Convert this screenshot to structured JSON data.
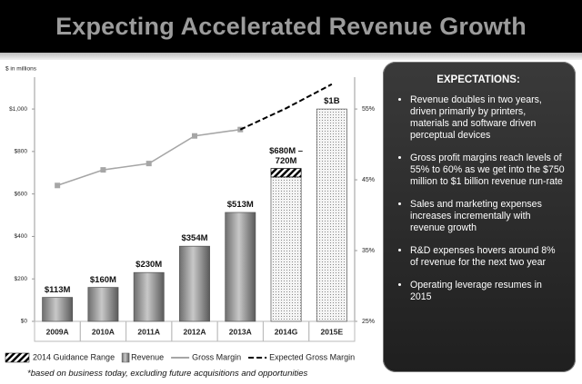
{
  "header": {
    "title": "Expecting Accelerated Revenue Growth"
  },
  "chart_data": {
    "type": "bar",
    "y_axis_label": "$ in millions",
    "categories": [
      "2009A",
      "2010A",
      "2011A",
      "2012A",
      "2013A",
      "2014G",
      "2015E"
    ],
    "series": [
      {
        "name": "Revenue",
        "color": "#9a9a9a",
        "values": [
          113,
          160,
          230,
          354,
          513,
          680,
          1000
        ],
        "value_labels": [
          "$113M",
          "$160M",
          "$230M",
          "$354M",
          "$513M",
          "$680M – 720M",
          "$1B"
        ]
      },
      {
        "name": "2014 Guidance Range",
        "color": "#000000",
        "stacked": true,
        "values": [
          null,
          null,
          null,
          null,
          null,
          40,
          null
        ]
      },
      {
        "name": "Gross Margin",
        "type": "line",
        "axis": "y2",
        "color": "#a6a6a6",
        "values": [
          44.2,
          46.4,
          47.3,
          51.2,
          52.1,
          null,
          null
        ]
      },
      {
        "name": "Expected Gross Margin",
        "type": "line",
        "axis": "y2",
        "color": "#000000",
        "dashed": true,
        "values": [
          null,
          null,
          null,
          null,
          52.1,
          55.1,
          58.5
        ]
      }
    ],
    "ylim": [
      0,
      1150
    ],
    "yticks": [
      {
        "value": 0,
        "label": "$0"
      },
      {
        "value": 200,
        "label": "$200"
      },
      {
        "value": 400,
        "label": "$400"
      },
      {
        "value": 600,
        "label": "$600"
      },
      {
        "value": 800,
        "label": "$800"
      },
      {
        "value": 1000,
        "label": "$1,000"
      }
    ],
    "y2lim": [
      25,
      59.5
    ],
    "y2ticks": [
      {
        "value": 25,
        "label": "25%"
      },
      {
        "value": 35,
        "label": "35%"
      },
      {
        "value": 45,
        "label": "45%"
      },
      {
        "value": 55,
        "label": "55%"
      }
    ],
    "legend": [
      "chart_data.series.1",
      "chart_data.series.0",
      "chart_data.series.2",
      "chart_data.series.3"
    ]
  },
  "panel": {
    "title": "EXPECTATIONS:",
    "bullets": [
      "Revenue doubles in two years, driven primarily by printers, materials and software driven perceptual devices",
      "Gross profit margins reach levels of 55% to 60% as we get into the $750 million to $1 billion revenue run-rate",
      "Sales and marketing expenses increases incrementally with revenue growth",
      "R&D expenses hovers around 8% of revenue for the  next two year",
      "Operating leverage resumes  in 2015"
    ]
  },
  "footnote": "*based on business today, excluding future acquisitions and opportunities"
}
